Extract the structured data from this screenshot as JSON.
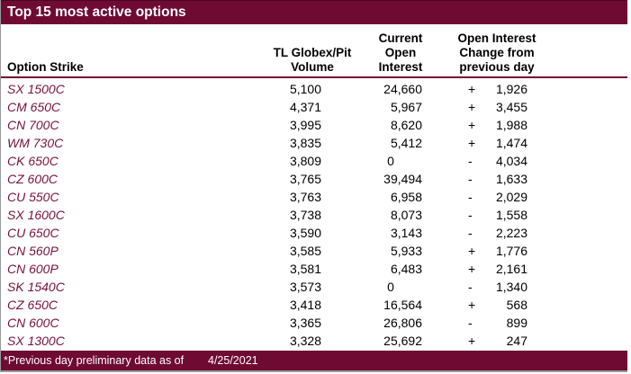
{
  "title_bar": {
    "title": "Top 15 most active options"
  },
  "header": {
    "col1": {
      "lines": [
        "Option Strike"
      ]
    },
    "col2": {
      "lines": [
        "TL Globex/Pit",
        "Volume"
      ]
    },
    "col3": {
      "lines": [
        "Current",
        "Open",
        "Interest"
      ]
    },
    "col4": {
      "lines": [
        "Open Interest",
        "Change from",
        "previous day"
      ]
    }
  },
  "rows": [
    {
      "strike": "SX 1500C",
      "volume": "5,100",
      "open_interest": "24,660",
      "change_sign": "+",
      "change_value": "1,926"
    },
    {
      "strike": "CM 650C",
      "volume": "4,371",
      "open_interest": "5,967",
      "change_sign": "+",
      "change_value": "3,455"
    },
    {
      "strike": "CN 700C",
      "volume": "3,995",
      "open_interest": "8,620",
      "change_sign": "+",
      "change_value": "1,988"
    },
    {
      "strike": "WM 730C",
      "volume": "3,835",
      "open_interest": "5,412",
      "change_sign": "+",
      "change_value": "1,474"
    },
    {
      "strike": "CK 650C",
      "volume": "3,809",
      "open_interest": "0",
      "change_sign": "-",
      "change_value": "4,034"
    },
    {
      "strike": "CZ 600C",
      "volume": "3,765",
      "open_interest": "39,494",
      "change_sign": "-",
      "change_value": "1,633"
    },
    {
      "strike": "CU 550C",
      "volume": "3,763",
      "open_interest": "6,958",
      "change_sign": "-",
      "change_value": "2,029"
    },
    {
      "strike": "SX 1600C",
      "volume": "3,738",
      "open_interest": "8,073",
      "change_sign": "-",
      "change_value": "1,558"
    },
    {
      "strike": "CU 650C",
      "volume": "3,590",
      "open_interest": "3,143",
      "change_sign": "-",
      "change_value": "2,223"
    },
    {
      "strike": "CN 560P",
      "volume": "3,585",
      "open_interest": "5,933",
      "change_sign": "+",
      "change_value": "1,776"
    },
    {
      "strike": "CN 600P",
      "volume": "3,581",
      "open_interest": "6,483",
      "change_sign": "+",
      "change_value": "2,161"
    },
    {
      "strike": "SK 1540C",
      "volume": "3,573",
      "open_interest": "0",
      "change_sign": "-",
      "change_value": "1,340"
    },
    {
      "strike": "CZ 650C",
      "volume": "3,418",
      "open_interest": "16,564",
      "change_sign": "+",
      "change_value": "568"
    },
    {
      "strike": "CN 600C",
      "volume": "3,365",
      "open_interest": "26,806",
      "change_sign": "-",
      "change_value": "899"
    },
    {
      "strike": "SX 1300C",
      "volume": "3,328",
      "open_interest": "25,692",
      "change_sign": "+",
      "change_value": "247"
    }
  ],
  "footer": {
    "note": "*Previous day preliminary data as of",
    "date": "4/25/2021"
  },
  "colors": {
    "maroon": "#6F0A33",
    "strike_text": "#76113C",
    "body_text": "#000000",
    "title_text": "#FFFFFF",
    "edge_gray": "#9A9A9A"
  }
}
